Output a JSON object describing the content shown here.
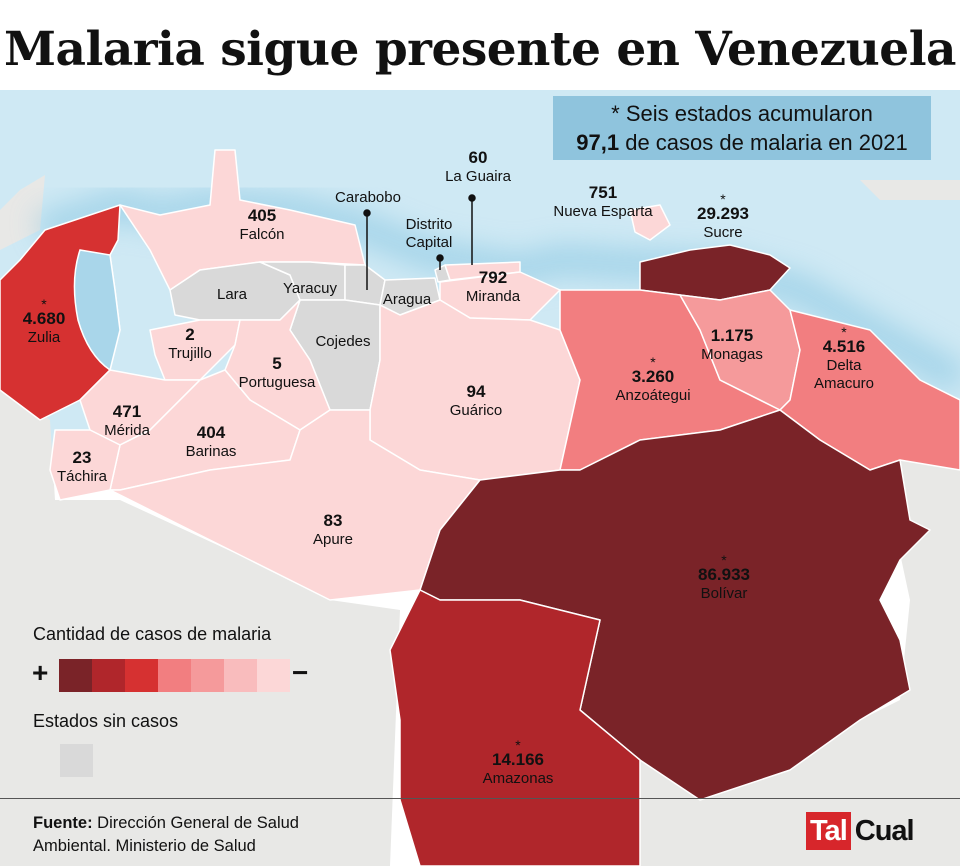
{
  "title": "Malaria sigue presente en Venezuela",
  "callout": {
    "line1": "Seis estados acumularon",
    "line2_strong": "97,1",
    "line2_rest": " de casos de malaria en 2021",
    "asterisk": "*"
  },
  "states": [
    {
      "id": "zulia",
      "name": "Zulia",
      "value": "4.680",
      "starred": true,
      "level": 3
    },
    {
      "id": "falcon",
      "name": "Falcón",
      "value": "405",
      "starred": false,
      "level": 7
    },
    {
      "id": "lara",
      "name": "Lara",
      "value": "",
      "starred": false,
      "level": 0
    },
    {
      "id": "yaracuy",
      "name": "Yaracuy",
      "value": "",
      "starred": false,
      "level": 0
    },
    {
      "id": "carabobo",
      "name": "Carabobo",
      "value": "",
      "starred": false,
      "level": 0
    },
    {
      "id": "aragua",
      "name": "Aragua",
      "value": "",
      "starred": false,
      "level": 0
    },
    {
      "id": "cojedes",
      "name": "Cojedes",
      "value": "",
      "starred": false,
      "level": 0
    },
    {
      "id": "distrito-capital",
      "name": "Distrito Capital",
      "value": "",
      "starred": false,
      "level": 0
    },
    {
      "id": "la-guaira",
      "name": "La Guaira",
      "value": "60",
      "starred": false,
      "level": 7
    },
    {
      "id": "miranda",
      "name": "Miranda",
      "value": "792",
      "starred": false,
      "level": 7
    },
    {
      "id": "trujillo",
      "name": "Trujillo",
      "value": "2",
      "starred": false,
      "level": 7
    },
    {
      "id": "portuguesa",
      "name": "Portuguesa",
      "value": "5",
      "starred": false,
      "level": 7
    },
    {
      "id": "merida",
      "name": "Mérida",
      "value": "471",
      "starred": false,
      "level": 7
    },
    {
      "id": "barinas",
      "name": "Barinas",
      "value": "404",
      "starred": false,
      "level": 7
    },
    {
      "id": "tachira",
      "name": "Táchira",
      "value": "23",
      "starred": false,
      "level": 7
    },
    {
      "id": "guarico",
      "name": "Guárico",
      "value": "94",
      "starred": false,
      "level": 7
    },
    {
      "id": "apure",
      "name": "Apure",
      "value": "83",
      "starred": false,
      "level": 7
    },
    {
      "id": "nueva-esparta",
      "name": "Nueva Esparta",
      "value": "751",
      "starred": false,
      "level": 7
    },
    {
      "id": "sucre",
      "name": "Sucre",
      "value": "29.293",
      "starred": true,
      "level": 1
    },
    {
      "id": "anzoategui",
      "name": "Anzoátegui",
      "value": "3.260",
      "starred": true,
      "level": 4
    },
    {
      "id": "monagas",
      "name": "Monagas",
      "value": "1.175",
      "starred": false,
      "level": 5
    },
    {
      "id": "delta-amacuro",
      "name": "Delta Amacuro",
      "value": "4.516",
      "starred": true,
      "level": 4
    },
    {
      "id": "bolivar",
      "name": "Bolívar",
      "value": "86.933",
      "starred": true,
      "level": 1
    },
    {
      "id": "amazonas",
      "name": "Amazonas",
      "value": "14.166",
      "starred": true,
      "level": 2
    }
  ],
  "legend": {
    "title": "Cantidad de casos de malaria",
    "plus": "+",
    "minus": "−",
    "scale_colors": [
      "#7a2328",
      "#b0262b",
      "#d63131",
      "#f27e80",
      "#f59a9b",
      "#f9bcbd",
      "#fcd7d7"
    ],
    "no_cases_label": "Estados sin casos",
    "no_cases_color": "#d9d9d9"
  },
  "colors": {
    "sea": "#a9d6ea",
    "neighbor": "#e8e8e6",
    "border": "#ffffff"
  },
  "source": {
    "label": "Fuente:",
    "text": " Dirección General de Salud Ambiental. Ministerio de Salud"
  },
  "logo": {
    "part1": "Tal",
    "part2": "Cual"
  }
}
